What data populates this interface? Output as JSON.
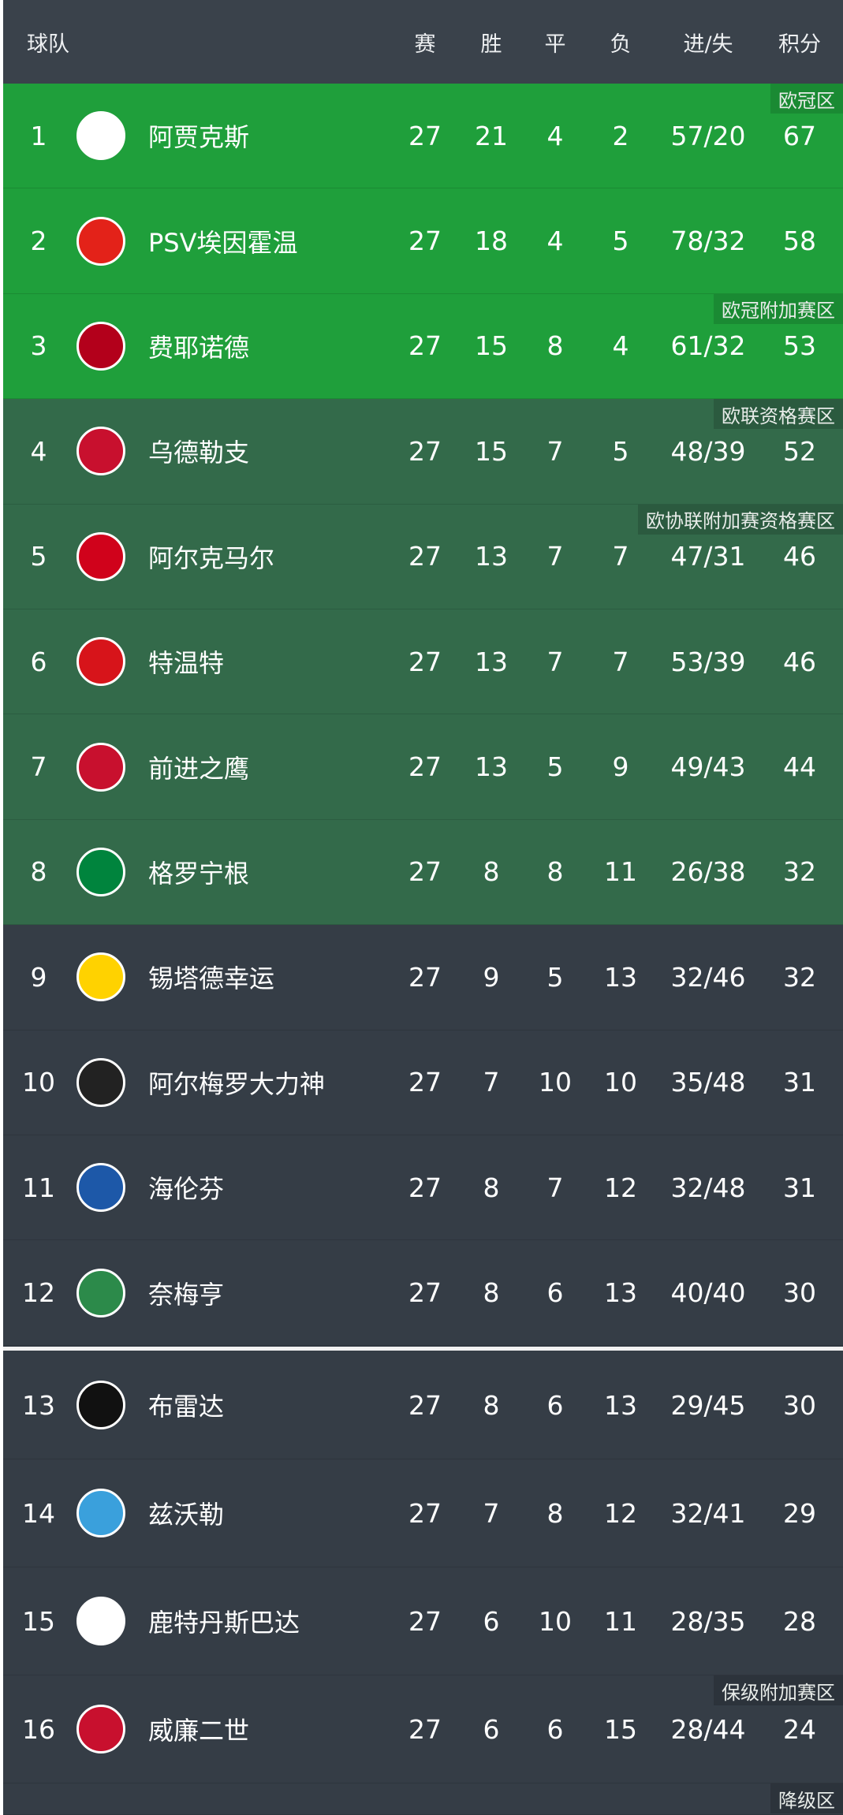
{
  "header": {
    "team": "球队",
    "played": "赛",
    "won": "胜",
    "drawn": "平",
    "lost": "负",
    "goals": "进/失",
    "points": "积分"
  },
  "colors": {
    "header": "#3a424b",
    "champions": "#1f9f3b",
    "europe": "#336a4a",
    "normal": "#353d46"
  },
  "rows": [
    {
      "rank": "1",
      "team": "阿贾克斯",
      "p": "27",
      "w": "21",
      "d": "4",
      "l": "2",
      "g": "57/20",
      "pts": "67",
      "zone": "欧冠区",
      "tier": "champions",
      "logo": "ajax-logo"
    },
    {
      "rank": "2",
      "team": "PSV埃因霍温",
      "p": "27",
      "w": "18",
      "d": "4",
      "l": "5",
      "g": "78/32",
      "pts": "58",
      "zone": "",
      "tier": "champions",
      "logo": "psv-logo"
    },
    {
      "rank": "3",
      "team": "费耶诺德",
      "p": "27",
      "w": "15",
      "d": "8",
      "l": "4",
      "g": "61/32",
      "pts": "53",
      "zone": "欧冠附加赛区",
      "tier": "champions",
      "logo": "feyenoord-logo"
    },
    {
      "rank": "4",
      "team": "乌德勒支",
      "p": "27",
      "w": "15",
      "d": "7",
      "l": "5",
      "g": "48/39",
      "pts": "52",
      "zone": "欧联资格赛区",
      "tier": "europe",
      "logo": "utrecht-logo"
    },
    {
      "rank": "5",
      "team": "阿尔克马尔",
      "p": "27",
      "w": "13",
      "d": "7",
      "l": "7",
      "g": "47/31",
      "pts": "46",
      "zone": "欧协联附加赛资格赛区",
      "tier": "europe",
      "logo": "az-logo"
    },
    {
      "rank": "6",
      "team": "特温特",
      "p": "27",
      "w": "13",
      "d": "7",
      "l": "7",
      "g": "53/39",
      "pts": "46",
      "zone": "",
      "tier": "europe",
      "logo": "twente-logo"
    },
    {
      "rank": "7",
      "team": "前进之鹰",
      "p": "27",
      "w": "13",
      "d": "5",
      "l": "9",
      "g": "49/43",
      "pts": "44",
      "zone": "",
      "tier": "europe",
      "logo": "go-ahead-eagles-logo"
    },
    {
      "rank": "8",
      "team": "格罗宁根",
      "p": "27",
      "w": "8",
      "d": "8",
      "l": "11",
      "g": "26/38",
      "pts": "32",
      "zone": "",
      "tier": "europe",
      "logo": "groningen-logo"
    },
    {
      "rank": "9",
      "team": "锡塔德幸运",
      "p": "27",
      "w": "9",
      "d": "5",
      "l": "13",
      "g": "32/46",
      "pts": "32",
      "zone": "",
      "tier": "normal",
      "logo": "fortuna-sittard-logo"
    },
    {
      "rank": "10",
      "team": "阿尔梅罗大力神",
      "p": "27",
      "w": "7",
      "d": "10",
      "l": "10",
      "g": "35/48",
      "pts": "31",
      "zone": "",
      "tier": "normal",
      "logo": "heracles-logo"
    },
    {
      "rank": "11",
      "team": "海伦芬",
      "p": "27",
      "w": "8",
      "d": "7",
      "l": "12",
      "g": "32/48",
      "pts": "31",
      "zone": "",
      "tier": "normal",
      "logo": "heerenveen-logo"
    },
    {
      "rank": "12",
      "team": "奈梅亨",
      "p": "27",
      "w": "8",
      "d": "6",
      "l": "13",
      "g": "40/40",
      "pts": "30",
      "zone": "",
      "tier": "normal",
      "logo": "nec-logo"
    },
    {
      "rank": "13",
      "team": "布雷达",
      "p": "27",
      "w": "8",
      "d": "6",
      "l": "13",
      "g": "29/45",
      "pts": "30",
      "zone": "",
      "tier": "normal",
      "logo": "nac-logo"
    },
    {
      "rank": "14",
      "team": "兹沃勒",
      "p": "27",
      "w": "7",
      "d": "8",
      "l": "12",
      "g": "32/41",
      "pts": "29",
      "zone": "",
      "tier": "normal",
      "logo": "pec-zwolle-logo"
    },
    {
      "rank": "15",
      "team": "鹿特丹斯巴达",
      "p": "27",
      "w": "6",
      "d": "10",
      "l": "11",
      "g": "28/35",
      "pts": "28",
      "zone": "",
      "tier": "normal",
      "logo": "sparta-logo"
    },
    {
      "rank": "16",
      "team": "威廉二世",
      "p": "27",
      "w": "6",
      "d": "6",
      "l": "15",
      "g": "28/44",
      "pts": "24",
      "zone": "保级附加赛区",
      "tier": "normal",
      "logo": "willem-ii-logo"
    }
  ],
  "partial_zone": "降级区"
}
